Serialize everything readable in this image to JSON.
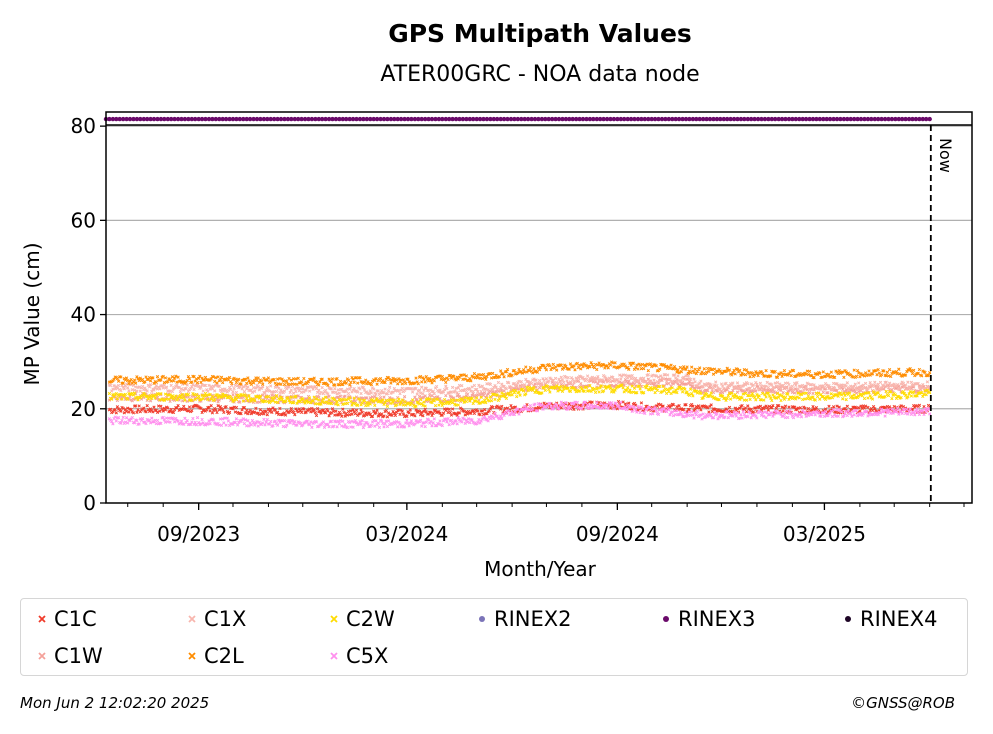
{
  "chart_data": {
    "type": "scatter",
    "title": "GPS Multipath Values",
    "subtitle": "ATER00GRC - NOA data node",
    "xlabel": "Month/Year",
    "ylabel": "MP Value (cm)",
    "xlim": [
      "2023-06-12",
      "2025-07-08"
    ],
    "ylim": [
      0,
      83
    ],
    "x_tick_labels": [
      "09/2023",
      "03/2024",
      "09/2024",
      "03/2025"
    ],
    "x_tick_dates": [
      "2023-09-01",
      "2024-03-01",
      "2024-09-01",
      "2025-03-01"
    ],
    "y_ticks": [
      0,
      20,
      40,
      60,
      80
    ],
    "grid": "y",
    "now_label": "Now",
    "now_date": "2025-06-02",
    "legend_position": "bottom",
    "series": [
      {
        "name": "C1C",
        "color": "#f03b2b",
        "marker": "x",
        "dates": [
          "2023-06-15",
          "2023-09-01",
          "2023-12-01",
          "2024-03-01",
          "2024-05-01",
          "2024-06-15",
          "2024-07-01",
          "2024-09-01",
          "2024-10-01",
          "2024-12-01",
          "2025-03-01",
          "2025-06-01"
        ],
        "values": [
          19.8,
          20.0,
          19.3,
          19.0,
          19.5,
          20.2,
          20.6,
          20.8,
          20.3,
          20.0,
          19.8,
          20.0
        ]
      },
      {
        "name": "C1W",
        "color": "#f4a19a",
        "marker": "x",
        "dates": [
          "2023-06-15",
          "2023-09-01",
          "2023-12-01",
          "2024-03-01",
          "2024-05-01",
          "2024-06-15",
          "2024-07-01",
          "2024-09-01",
          "2024-11-01",
          "2024-11-15",
          "2025-03-01",
          "2025-06-01"
        ],
        "values": [
          22.5,
          22.3,
          22.0,
          21.8,
          22.5,
          24.5,
          25.0,
          25.5,
          25.6,
          24.0,
          24.0,
          24.3
        ]
      },
      {
        "name": "C1X",
        "color": "#f8b6ae",
        "marker": "x",
        "dates": [
          "2023-06-15",
          "2023-09-01",
          "2023-12-01",
          "2024-03-01",
          "2024-05-01",
          "2024-06-15",
          "2024-07-01",
          "2024-09-01",
          "2024-11-01",
          "2024-11-15",
          "2025-03-01",
          "2025-06-01"
        ],
        "values": [
          24.5,
          24.4,
          24.0,
          23.8,
          24.3,
          25.5,
          26.0,
          26.4,
          26.5,
          24.9,
          24.7,
          25.0
        ]
      },
      {
        "name": "C2L",
        "color": "#ff8c00",
        "marker": "x",
        "dates": [
          "2023-06-15",
          "2023-09-01",
          "2023-12-01",
          "2024-03-01",
          "2024-05-01",
          "2024-06-15",
          "2024-07-01",
          "2024-09-01",
          "2024-11-01",
          "2025-01-01",
          "2025-03-01",
          "2025-06-01"
        ],
        "values": [
          26.0,
          26.2,
          25.7,
          26.0,
          26.7,
          28.2,
          28.8,
          29.2,
          28.3,
          27.5,
          27.3,
          27.8
        ]
      },
      {
        "name": "C2W",
        "color": "#ffdc00",
        "marker": "x",
        "dates": [
          "2023-06-15",
          "2023-09-01",
          "2023-12-01",
          "2024-03-01",
          "2024-05-01",
          "2024-06-15",
          "2024-07-01",
          "2024-09-01",
          "2024-11-01",
          "2024-11-15",
          "2025-03-01",
          "2025-06-01"
        ],
        "values": [
          22.5,
          22.6,
          21.8,
          21.2,
          21.6,
          23.8,
          24.2,
          24.3,
          23.8,
          22.6,
          22.5,
          23.2
        ]
      },
      {
        "name": "C5X",
        "color": "#ff90ee",
        "marker": "x",
        "dates": [
          "2023-06-15",
          "2023-09-01",
          "2023-12-01",
          "2024-03-01",
          "2024-05-01",
          "2024-06-15",
          "2024-07-01",
          "2024-09-01",
          "2024-10-01",
          "2024-11-15",
          "2025-03-01",
          "2025-06-01"
        ],
        "values": [
          17.5,
          17.4,
          16.8,
          16.8,
          17.5,
          20.0,
          20.6,
          20.7,
          19.6,
          18.6,
          19.0,
          19.4
        ]
      },
      {
        "name": "RINEX2",
        "color": "#7b74b8",
        "marker": "o",
        "dates": [],
        "values": []
      },
      {
        "name": "RINEX3",
        "color": "#6a0a6a",
        "marker": "o",
        "dates": [
          "2023-06-12",
          "2025-06-01"
        ],
        "values": [
          81.5,
          81.5
        ]
      },
      {
        "name": "RINEX4",
        "color": "#1e0526",
        "marker": "o",
        "dates": [],
        "values": []
      }
    ]
  },
  "legend": {
    "items": [
      {
        "label": "C1C",
        "color": "#f03b2b",
        "marker": "x"
      },
      {
        "label": "C1X",
        "color": "#f8b6ae",
        "marker": "x"
      },
      {
        "label": "C2W",
        "color": "#ffdc00",
        "marker": "x"
      },
      {
        "label": "RINEX2",
        "color": "#7b74b8",
        "marker": "o"
      },
      {
        "label": "RINEX3",
        "color": "#6a0a6a",
        "marker": "o"
      },
      {
        "label": "RINEX4",
        "color": "#1e0526",
        "marker": "o"
      },
      {
        "label": "C1W",
        "color": "#f4a19a",
        "marker": "x"
      },
      {
        "label": "C2L",
        "color": "#ff8c00",
        "marker": "x"
      },
      {
        "label": "C5X",
        "color": "#ff90ee",
        "marker": "x"
      }
    ]
  },
  "footer": {
    "timestamp": "Mon Jun  2 12:02:20 2025",
    "credit": "©GNSS@ROB"
  }
}
